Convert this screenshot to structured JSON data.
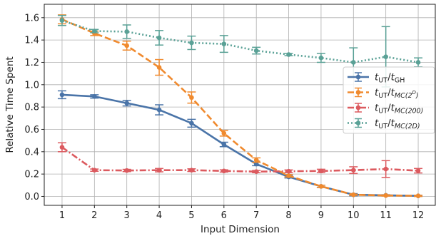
{
  "chart_data": {
    "type": "line",
    "xlabel": "Input Dimension",
    "ylabel": "Relative Time Spent",
    "x": [
      1,
      2,
      3,
      4,
      5,
      6,
      7,
      8,
      9,
      10,
      11,
      12
    ],
    "xlim": [
      0.45,
      12.55
    ],
    "ylim": [
      -0.08,
      1.72
    ],
    "xticks": [
      "1",
      "2",
      "3",
      "4",
      "5",
      "6",
      "7",
      "8",
      "9",
      "10",
      "11",
      "12"
    ],
    "yticks": [
      "0.0",
      "0.2",
      "0.4",
      "0.6",
      "0.8",
      "1.0",
      "1.2",
      "1.4",
      "1.6"
    ],
    "grid": true,
    "legend_position": "right",
    "series": [
      {
        "name": "t_UT/t_GH",
        "label_base": "t",
        "label_sub1": "UT",
        "label_slash": "/",
        "label_base2": "t",
        "label_sub2": "GH",
        "color": "#4a74a8",
        "linestyle": "solid",
        "values": [
          0.91,
          0.895,
          0.835,
          0.775,
          0.655,
          0.465,
          0.29,
          0.175,
          0.09,
          0.015,
          0.01,
          0.005
        ],
        "errors": [
          0.035,
          0.015,
          0.025,
          0.045,
          0.035,
          0.02,
          0.015,
          0.01,
          0.01,
          0.01,
          0.005,
          0.005
        ]
      },
      {
        "name": "t_UT/t_MC(2^D)",
        "label_base": "t",
        "label_sub1": "UT",
        "label_slash": "/",
        "label_base2": "t",
        "label_sub2": "MC(2",
        "label_sup": "D",
        "label_close": ")",
        "color": "#f08a2e",
        "linestyle": "dashed",
        "values": [
          1.585,
          1.46,
          1.35,
          1.155,
          0.885,
          0.565,
          0.325,
          0.185,
          0.09,
          0.015,
          0.008,
          0.005
        ],
        "errors": [
          0.04,
          0.02,
          0.04,
          0.07,
          0.05,
          0.025,
          0.02,
          0.01,
          0.01,
          0.005,
          0.005,
          0.005
        ]
      },
      {
        "name": "t_UT/t_MC(200)",
        "label_base": "t",
        "label_sub1": "UT",
        "label_slash": "/",
        "label_base2": "t",
        "label_sub2": "MC(200)",
        "color": "#dc5a5f",
        "linestyle": "dashdot",
        "values": [
          0.44,
          0.235,
          0.232,
          0.235,
          0.235,
          0.228,
          0.222,
          0.225,
          0.228,
          0.235,
          0.245,
          0.23
        ],
        "errors": [
          0.04,
          0.01,
          0.01,
          0.015,
          0.012,
          0.01,
          0.01,
          0.012,
          0.015,
          0.03,
          0.075,
          0.02
        ]
      },
      {
        "name": "t_UT/t_MC(2D)",
        "label_base": "t",
        "label_sub1": "UT",
        "label_slash": "/",
        "label_base2": "t",
        "label_sub2": "MC(2D)",
        "color": "#5aa196",
        "linestyle": "dotted",
        "values": [
          1.575,
          1.48,
          1.475,
          1.42,
          1.375,
          1.365,
          1.305,
          1.27,
          1.24,
          1.2,
          1.25,
          1.2
        ],
        "errors": [
          0.045,
          0.015,
          0.06,
          0.065,
          0.06,
          0.075,
          0.03,
          0.01,
          0.04,
          0.13,
          0.27,
          0.04
        ]
      }
    ]
  }
}
